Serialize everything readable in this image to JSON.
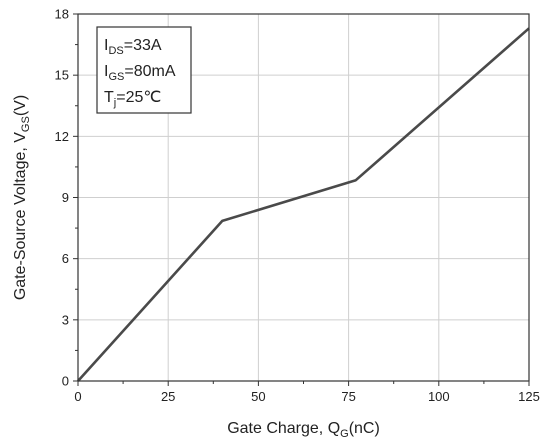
{
  "chart_data": {
    "type": "line",
    "xlabel": {
      "main": "Gate Charge, Q",
      "sub": "G",
      "tail": "(nC)"
    },
    "ylabel": {
      "main": "Gate-Source Voltage, V",
      "sub": "GS",
      "tail": "(V)"
    },
    "xlim": [
      0,
      125
    ],
    "ylim": [
      0,
      18
    ],
    "xticks": [
      0,
      25,
      50,
      75,
      100,
      125
    ],
    "yticks": [
      0,
      3,
      6,
      9,
      12,
      15,
      18
    ],
    "grid": true,
    "series": [
      {
        "color": "#4a4a4a",
        "x": [
          0,
          40,
          77,
          125
        ],
        "y": [
          0,
          7.85,
          9.85,
          17.3
        ]
      }
    ],
    "annotations": [
      {
        "main": "I",
        "sub": "DS",
        "tail": "=33A"
      },
      {
        "main": "I",
        "sub": "GS",
        "tail": "=80mA"
      },
      {
        "main": "T",
        "sub": "j",
        "tail": "=25℃"
      }
    ]
  }
}
